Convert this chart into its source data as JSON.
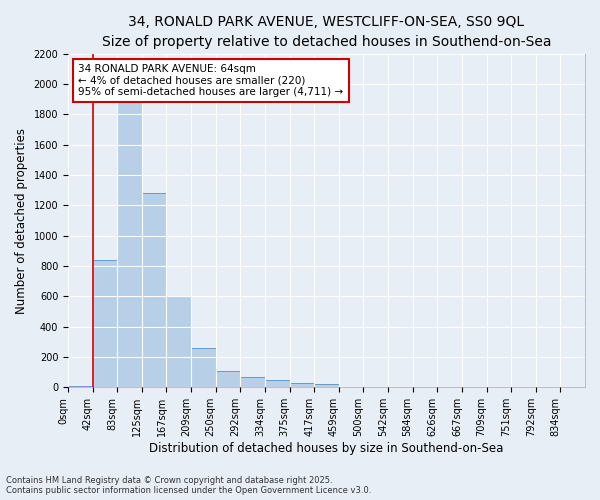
{
  "title_line1": "34, RONALD PARK AVENUE, WESTCLIFF-ON-SEA, SS0 9QL",
  "title_line2": "Size of property relative to detached houses in Southend-on-Sea",
  "xlabel": "Distribution of detached houses by size in Southend-on-Sea",
  "ylabel": "Number of detached properties",
  "bar_labels": [
    "0sqm",
    "42sqm",
    "83sqm",
    "125sqm",
    "167sqm",
    "209sqm",
    "250sqm",
    "292sqm",
    "334sqm",
    "375sqm",
    "417sqm",
    "459sqm",
    "500sqm",
    "542sqm",
    "584sqm",
    "626sqm",
    "667sqm",
    "709sqm",
    "751sqm",
    "792sqm",
    "834sqm"
  ],
  "bar_values": [
    10,
    840,
    1930,
    1280,
    600,
    260,
    110,
    65,
    50,
    30,
    20,
    5,
    0,
    0,
    0,
    0,
    0,
    0,
    0,
    0,
    0
  ],
  "bar_color": "#b8cfe8",
  "bar_edge_color": "#6699cc",
  "background_color": "#e8eef6",
  "grid_color": "#ffffff",
  "vline_color": "#cc0000",
  "annotation_text": "34 RONALD PARK AVENUE: 64sqm\n← 4% of detached houses are smaller (220)\n95% of semi-detached houses are larger (4,711) →",
  "annotation_box_color": "#ffffff",
  "annotation_box_edge": "#cc0000",
  "ylim": [
    0,
    2200
  ],
  "yticks": [
    0,
    200,
    400,
    600,
    800,
    1000,
    1200,
    1400,
    1600,
    1800,
    2000,
    2200
  ],
  "footnote": "Contains HM Land Registry data © Crown copyright and database right 2025.\nContains public sector information licensed under the Open Government Licence v3.0.",
  "title_fontsize": 10,
  "subtitle_fontsize": 9,
  "axis_label_fontsize": 8.5,
  "tick_fontsize": 7,
  "annotation_fontsize": 7.5,
  "footnote_fontsize": 6
}
